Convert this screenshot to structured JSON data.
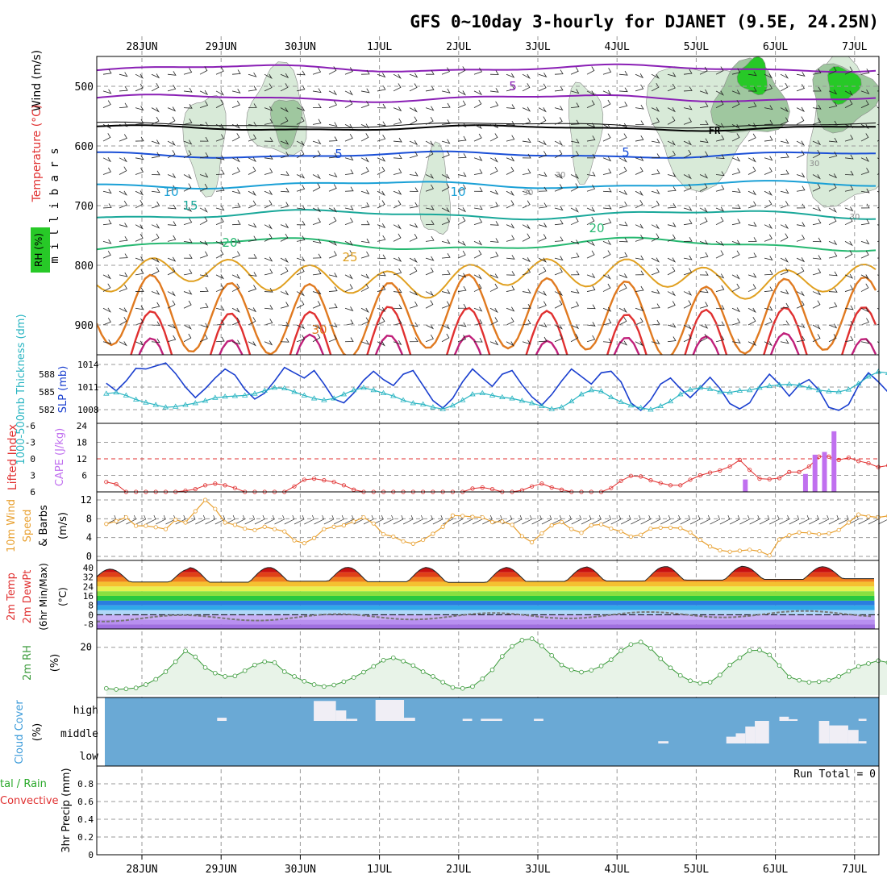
{
  "title": "GFS 0~10day 3-hourly for DJANET (9.5E, 24.25N)",
  "colors": {
    "grid": "#9a9a9a",
    "temp_purple": "#8a1fb5",
    "temp_blue": "#1a4fd6",
    "temp_cyan": "#1aa0d6",
    "temp_teal": "#1aa89a",
    "temp_green": "#26b870",
    "temp_orange": "#e0a020",
    "temp_dorange": "#e07a20",
    "temp_red": "#e03030",
    "temp_magenta": "#c0207a",
    "freezing": "#000000",
    "rh_light": "#d8ead8",
    "rh_mid": "#9fc79f",
    "rh_bright": "#27c927",
    "slp": "#1a3fcf",
    "thickness": "#2ab5c2",
    "lifted": "#e03030",
    "cape": "#c070ef",
    "wind10": "#e8a030",
    "barb": "#3a3a3a",
    "dewpt": "#777777",
    "rh2m": "#3a9a3a",
    "rh2m_fill": "#e8f3e8",
    "cloud_bg": "#6aa9d5",
    "cloud_fill": "#f0eef5"
  },
  "chart_data": {
    "type": "meteogram",
    "x_axis": {
      "labels": [
        "28JUN",
        "29JUN",
        "30JUN",
        "1JUL",
        "2JUL",
        "3JUL",
        "4JUL",
        "5JUL",
        "6JUL",
        "7JUL"
      ],
      "start_day_offset": -0.45,
      "end_day_offset": 9.25,
      "step_hours": 3
    },
    "panels": [
      {
        "id": "upper_air",
        "type": "contour",
        "ylabel_parts": [
          "RH (%)",
          "Temperature (°C)",
          "Wind (m/s)"
        ],
        "ylabel_units": "m i l l i b a r s",
        "y_ticks": [
          "500",
          "600",
          "700",
          "800",
          "900"
        ],
        "y_range": [
          450,
          950
        ],
        "temperature_contour_labels": [
          "5",
          "5",
          "5",
          "10",
          "10",
          "15",
          "20",
          "20",
          "25",
          "30"
        ],
        "freezing_label": "FR",
        "rh_labels": [
          "30",
          "30",
          "30",
          "30"
        ]
      },
      {
        "id": "slp_thickness",
        "type": "line",
        "ylabel_left": "1000-500mb Thickness (dm)",
        "ylabel_right": "SLP (mb)",
        "thickness_ticks": [
          "588",
          "585",
          "582"
        ],
        "slp_ticks": [
          "1014",
          "1011",
          "1008"
        ],
        "series": [
          {
            "name": "SLP",
            "unit": "mb",
            "values": [
              1011.5,
              1010.5,
              1011.8,
              1013.5,
              1013.4,
              1013.8,
              1014.2,
              1012.8,
              1011.0,
              1009.6,
              1010.8,
              1012.2,
              1013.4,
              1012.6,
              1010.7,
              1009.4,
              1010.2,
              1011.8,
              1013.6,
              1012.9,
              1012.2,
              1013.2,
              1011.4,
              1009.4,
              1008.9,
              1010.2,
              1011.9,
              1013.1,
              1012.0,
              1011.2,
              1012.7,
              1013.2,
              1011.2,
              1009.2,
              1008.2,
              1009.5,
              1011.7,
              1013.4,
              1012.2,
              1011.1,
              1012.7,
              1013.2,
              1011.3,
              1009.7,
              1008.6,
              1010.0,
              1011.8,
              1013.4,
              1012.4,
              1011.4,
              1012.9,
              1013.1,
              1011.7,
              1008.9,
              1007.9,
              1009.3,
              1011.4,
              1012.2,
              1010.8,
              1009.6,
              1010.9,
              1012.3,
              1010.8,
              1008.8,
              1008.1,
              1008.9,
              1011.1,
              1012.7,
              1011.4,
              1009.8,
              1011.3,
              1012.0,
              1010.6,
              1008.3,
              1007.9,
              1008.7,
              1011.2,
              1012.9,
              1011.7,
              1010.3,
              1009.4,
              1008.1,
              1006.6,
              1007.8,
              1009.3,
              1011.0
            ]
          },
          {
            "name": "Thickness",
            "unit": "dm",
            "values": [
              584.7,
              584.9,
              584.4,
              583.7,
              583.2,
              582.8,
              582.4,
              582.5,
              582.8,
              583.1,
              583.5,
              584.0,
              584.2,
              584.3,
              584.4,
              584.7,
              585.2,
              585.7,
              585.6,
              585.0,
              584.4,
              583.9,
              583.6,
              583.9,
              584.6,
              585.3,
              585.7,
              585.3,
              584.8,
              584.3,
              583.6,
              583.1,
              582.9,
              582.4,
              582.1,
              582.7,
              583.6,
              584.6,
              584.8,
              584.4,
              584.1,
              583.9,
              583.5,
              583.1,
              582.6,
              582.1,
              582.4,
              583.4,
              584.6,
              585.3,
              585.1,
              584.1,
              583.3,
              582.7,
              582.3,
              582.0,
              582.6,
              583.4,
              584.6,
              585.4,
              585.7,
              585.5,
              585.0,
              584.9,
              585.2,
              585.3,
              585.7,
              586.0,
              586.2,
              586.3,
              586.1,
              585.7,
              585.3,
              585.1,
              585.0,
              585.4,
              586.4,
              587.6,
              588.4,
              588.2,
              587.6,
              586.7,
              585.8,
              585.5,
              585.9,
              586.1
            ]
          }
        ]
      },
      {
        "id": "li_cape",
        "type": "line+bar",
        "ylabel_left": "Lifted Index",
        "ylabel_right": "CAPE (J/kg)",
        "li_ticks": [
          "-6",
          "-3",
          "0",
          "3",
          "6"
        ],
        "cape_ticks": [
          "24",
          "18",
          "12",
          "6"
        ],
        "li_values": [
          4.2,
          4.6,
          7.2,
          7.5,
          7.6,
          7.5,
          6.8,
          6.1,
          5.8,
          5.5,
          4.8,
          4.5,
          4.8,
          5.3,
          6.0,
          6.8,
          7.0,
          6.9,
          6.3,
          5.0,
          3.8,
          3.6,
          3.9,
          4.2,
          4.8,
          5.6,
          6.5,
          6.8,
          6.9,
          6.7,
          6.3,
          6.2,
          6.0,
          6.1,
          6.6,
          6.5,
          6.1,
          5.4,
          5.2,
          5.5,
          6.4,
          6.1,
          5.7,
          5.0,
          4.5,
          5.2,
          5.6,
          6.1,
          6.8,
          6.7,
          6.2,
          5.3,
          4.0,
          3.1,
          3.2,
          3.9,
          4.4,
          4.8,
          4.8,
          3.8,
          3.0,
          2.5,
          2.1,
          1.4,
          0.2,
          2.0,
          3.6,
          3.7,
          3.5,
          2.4,
          2.4,
          1.4,
          -0.4,
          -0.4,
          0.2,
          -0.2,
          0.4,
          0.8,
          1.5,
          1.2,
          0.6,
          0.1,
          -0.5,
          0.0,
          0.2,
          0.4
        ],
        "cape_bars": [
          {
            "day": 7.62,
            "value": 4.5
          },
          {
            "day": 8.38,
            "value": 6.5
          },
          {
            "day": 8.5,
            "value": 13.5
          },
          {
            "day": 8.62,
            "value": 14.5
          },
          {
            "day": 8.74,
            "value": 22.0
          }
        ]
      },
      {
        "id": "wind10m",
        "type": "line",
        "ylabel": "10m Wind Speed & Barbs (m/s)",
        "y_ticks": [
          "12",
          "8",
          "4",
          "0"
        ],
        "values": [
          6.9,
          7.5,
          8.3,
          6.5,
          6.5,
          6.2,
          5.8,
          7.8,
          7.2,
          9.6,
          12.0,
          10.1,
          7.2,
          6.7,
          5.9,
          5.6,
          6.3,
          5.8,
          5.3,
          3.4,
          2.8,
          3.9,
          5.8,
          6.3,
          6.6,
          7.4,
          8.3,
          7.0,
          4.7,
          4.2,
          3.2,
          2.7,
          3.5,
          4.8,
          6.3,
          8.7,
          8.6,
          8.4,
          8.3,
          7.3,
          7.4,
          6.7,
          4.3,
          3.0,
          4.9,
          6.6,
          7.3,
          5.8,
          5.0,
          6.6,
          6.8,
          5.9,
          5.3,
          4.2,
          4.6,
          5.9,
          6.1,
          6.1,
          6.0,
          5.1,
          3.5,
          2.1,
          1.3,
          1.0,
          1.2,
          1.4,
          1.1,
          0.2,
          3.6,
          4.5,
          5.1,
          5.0,
          4.7,
          4.9,
          5.6,
          7.2,
          8.9,
          8.5,
          8.3,
          8.6,
          6.1,
          2.8,
          2.7,
          3.6,
          3.2,
          4.2
        ]
      },
      {
        "id": "temp2m",
        "type": "area",
        "ylabel_lines": [
          "2m Temp",
          "2m DewPt",
          "(6hr Min/Max)"
        ],
        "ylabel_unit": "(°C)",
        "y_ticks": [
          "40",
          "32",
          "24",
          "16",
          "8",
          "0",
          "-8"
        ],
        "temp_max": [
          38.7,
          40.0,
          40.2,
          40.2,
          39.8,
          40.1,
          40.7,
          41.2,
          40.8,
          40.7
        ],
        "temp_min": [
          27.8,
          27.6,
          28.4,
          28.0,
          27.4,
          28.3,
          28.6,
          29.4,
          30.0,
          30.6
        ],
        "dewpt_range": [
          -4.5,
          4.5
        ]
      },
      {
        "id": "rh2m",
        "type": "line",
        "ylabel": "2m RH (%)",
        "y_ticks": [
          "20"
        ],
        "values": [
          2.8,
          2.4,
          2.6,
          3.0,
          4.4,
          6.6,
          9.8,
          14.0,
          18.5,
          16.0,
          11.5,
          9.2,
          7.8,
          8.0,
          10.2,
          12.6,
          14.0,
          13.6,
          9.8,
          7.8,
          5.8,
          4.4,
          3.6,
          4.2,
          5.6,
          7.4,
          9.6,
          12.0,
          14.6,
          15.6,
          14.2,
          12.4,
          9.8,
          7.8,
          5.4,
          3.2,
          2.8,
          3.6,
          6.8,
          10.6,
          16.2,
          20.4,
          23.0,
          23.6,
          20.6,
          16.6,
          12.6,
          10.6,
          9.6,
          10.4,
          12.2,
          14.8,
          18.6,
          21.2,
          22.2,
          19.6,
          15.2,
          11.4,
          8.2,
          6.0,
          5.0,
          5.4,
          8.4,
          12.6,
          15.6,
          18.6,
          18.8,
          16.8,
          12.4,
          7.6,
          6.2,
          5.4,
          5.6,
          6.2,
          7.8,
          10.0,
          12.0,
          13.2,
          14.4,
          13.6,
          11.6,
          9.6,
          7.6,
          6.2,
          4.8,
          3.6
        ]
      },
      {
        "id": "cloud",
        "type": "bar",
        "ylabel": "Cloud Cover (%)",
        "levels": [
          "high",
          "middle",
          "low"
        ],
        "blocks": [
          {
            "start": 0.95,
            "end": 1.07,
            "level": "high",
            "value": 0.15
          },
          {
            "start": 2.17,
            "end": 2.45,
            "level": "high",
            "value": 0.95
          },
          {
            "start": 2.45,
            "end": 2.58,
            "level": "high",
            "value": 0.5
          },
          {
            "start": 2.58,
            "end": 2.72,
            "level": "high",
            "value": 0.1
          },
          {
            "start": 2.95,
            "end": 3.31,
            "level": "high",
            "value": 1.0
          },
          {
            "start": 3.31,
            "end": 3.45,
            "level": "high",
            "value": 0.15
          },
          {
            "start": 4.05,
            "end": 4.17,
            "level": "high",
            "value": 0.1
          },
          {
            "start": 4.28,
            "end": 4.55,
            "level": "high",
            "value": 0.1
          },
          {
            "start": 4.95,
            "end": 5.07,
            "level": "high",
            "value": 0.1
          },
          {
            "start": 6.52,
            "end": 6.65,
            "level": "middle",
            "value": 0.1
          },
          {
            "start": 7.38,
            "end": 7.5,
            "level": "middle",
            "value": 0.3
          },
          {
            "start": 7.5,
            "end": 7.62,
            "level": "middle",
            "value": 0.45
          },
          {
            "start": 7.62,
            "end": 7.74,
            "level": "middle",
            "value": 0.75
          },
          {
            "start": 7.74,
            "end": 7.92,
            "level": "middle",
            "value": 1.0
          },
          {
            "start": 8.05,
            "end": 8.17,
            "level": "high",
            "value": 0.2
          },
          {
            "start": 8.17,
            "end": 8.28,
            "level": "high",
            "value": 0.08
          },
          {
            "start": 8.55,
            "end": 8.68,
            "level": "middle",
            "value": 1.0
          },
          {
            "start": 8.68,
            "end": 8.92,
            "level": "middle",
            "value": 0.8
          },
          {
            "start": 8.92,
            "end": 9.05,
            "level": "middle",
            "value": 0.6
          },
          {
            "start": 9.05,
            "end": 9.15,
            "level": "middle",
            "value": 0.1
          },
          {
            "start": 9.05,
            "end": 9.15,
            "level": "high",
            "value": 0.1
          }
        ]
      },
      {
        "id": "precip",
        "type": "bar",
        "ylabel_left_lines": [
          "tal / Rain",
          "Convective"
        ],
        "ylabel": "3hr Precip (mm)",
        "y_ticks": [
          "0.8",
          "0.6",
          "0.4",
          "0.2",
          "0"
        ],
        "run_total": "Run Total = 0",
        "values": []
      }
    ]
  }
}
